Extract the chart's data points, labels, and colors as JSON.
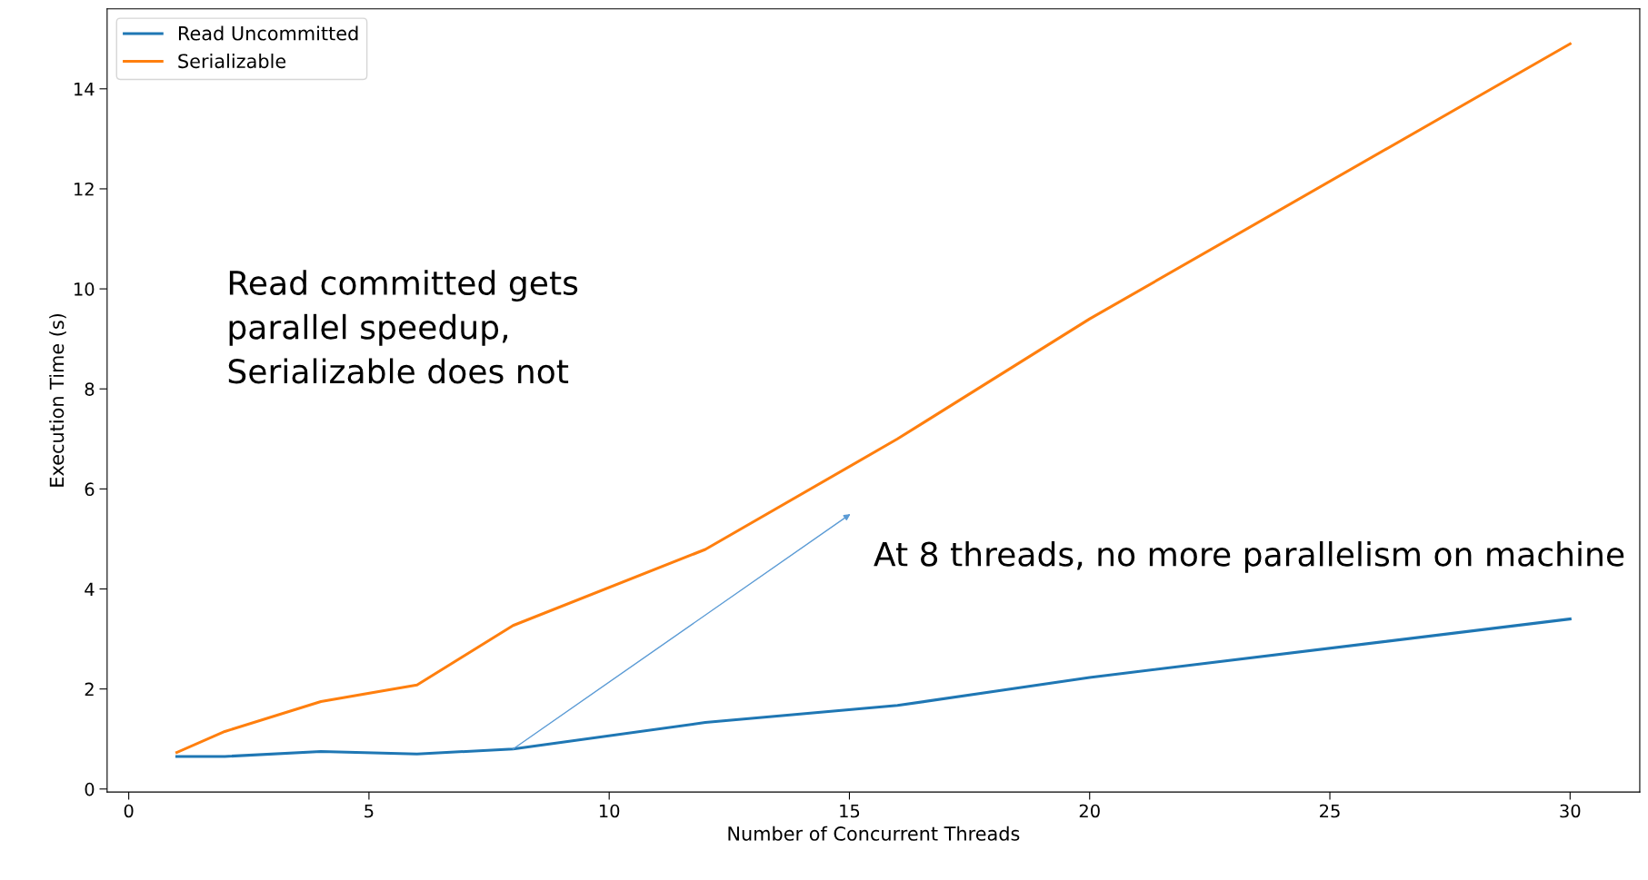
{
  "chart_data": {
    "type": "line",
    "xlabel": "Number of Concurrent Threads",
    "ylabel": "Execution Time (s)",
    "x": [
      1,
      2,
      4,
      6,
      8,
      12,
      16,
      20,
      30
    ],
    "series": [
      {
        "name": "Read Uncommitted",
        "color": "#1f77b4",
        "values": [
          0.65,
          0.65,
          0.75,
          0.7,
          0.8,
          1.33,
          1.67,
          2.23,
          3.4
        ]
      },
      {
        "name": "Serializable",
        "color": "#ff7f0e",
        "values": [
          0.73,
          1.15,
          1.75,
          2.08,
          3.27,
          4.79,
          7.0,
          9.4,
          14.9
        ]
      }
    ],
    "xlim": [
      -0.45,
      31.45
    ],
    "ylim": [
      -0.06,
      15.6
    ],
    "xticks": [
      0,
      5,
      10,
      15,
      20,
      25,
      30
    ],
    "yticks": [
      0,
      2,
      4,
      6,
      8,
      10,
      12,
      14
    ],
    "grid": false,
    "legend": "top left",
    "marker": "none",
    "line_style": "solid",
    "annotations": [
      "Read committed gets parallel speedup, Serializable does not",
      {
        "text": "At 8 threads, no more parallelism on machine",
        "x": 8,
        "y": 0.8
      }
    ]
  }
}
